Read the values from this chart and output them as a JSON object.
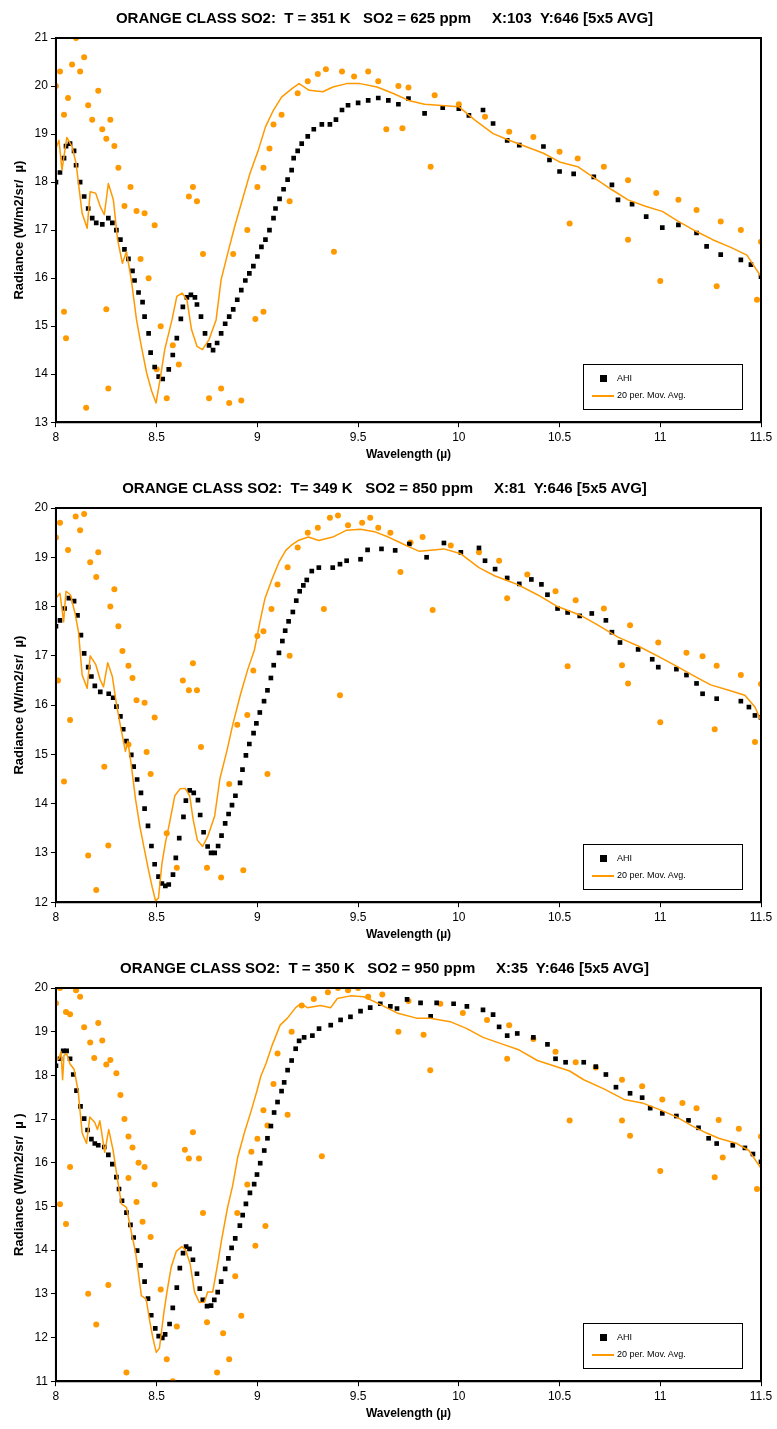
{
  "chart_data": [
    {
      "type": "scatter",
      "title": "ORANGE CLASS SO2:  T = 351 K   SO2 = 625 ppm     X:103  Y:646 [5x5 AVG]",
      "xlabel": "Wavelength (µ)",
      "ylabel": "Radiance (W/m2/sr/  µ)",
      "xlim": [
        8,
        11.5
      ],
      "xticks": [
        8,
        8.5,
        9,
        9.5,
        10,
        10.5,
        11,
        11.5
      ],
      "ylim": [
        13,
        21
      ],
      "yticks": [
        13,
        14,
        15,
        16,
        17,
        18,
        19,
        20,
        21
      ],
      "legend": "bottom right",
      "series": [
        {
          "name": "AHI",
          "type": "scatter",
          "marker": "square",
          "color": "#000000",
          "x": [
            8.0,
            8.02,
            8.04,
            8.05,
            8.07,
            8.09,
            8.1,
            8.12,
            8.14,
            8.16,
            8.18,
            8.2,
            8.23,
            8.26,
            8.28,
            8.3,
            8.32,
            8.34,
            8.36,
            8.38,
            8.39,
            8.41,
            8.43,
            8.44,
            8.46,
            8.47,
            8.49,
            8.51,
            8.53,
            8.56,
            8.58,
            8.6,
            8.62,
            8.63,
            8.65,
            8.67,
            8.69,
            8.7,
            8.72,
            8.74,
            8.76,
            8.78,
            8.8,
            8.82,
            8.84,
            8.86,
            8.88,
            8.9,
            8.92,
            8.94,
            8.96,
            8.98,
            9.0,
            9.02,
            9.04,
            9.06,
            9.08,
            9.09,
            9.11,
            9.13,
            9.15,
            9.17,
            9.18,
            9.2,
            9.22,
            9.25,
            9.28,
            9.32,
            9.36,
            9.39,
            9.42,
            9.45,
            9.5,
            9.55,
            9.6,
            9.65,
            9.7,
            9.75,
            9.83,
            9.92,
            10.0,
            10.05,
            10.12,
            10.17,
            10.24,
            10.3,
            10.42,
            10.45,
            10.5,
            10.57,
            10.67,
            10.76,
            10.79,
            10.86,
            10.93,
            11.01,
            11.09,
            11.18,
            11.23,
            11.3,
            11.4,
            11.45,
            11.5
          ],
          "values": [
            18.0,
            18.2,
            18.5,
            18.75,
            18.8,
            18.65,
            18.35,
            18.0,
            17.7,
            17.45,
            17.25,
            17.15,
            17.12,
            17.25,
            17.15,
            17.0,
            16.8,
            16.6,
            16.4,
            16.15,
            15.95,
            15.7,
            15.5,
            15.2,
            14.85,
            14.45,
            14.15,
            13.95,
            13.9,
            14.1,
            14.4,
            14.75,
            15.15,
            15.4,
            15.6,
            15.65,
            15.6,
            15.45,
            15.2,
            14.85,
            14.6,
            14.5,
            14.65,
            14.85,
            15.05,
            15.2,
            15.35,
            15.55,
            15.75,
            15.95,
            16.1,
            16.25,
            16.45,
            16.65,
            16.8,
            17.0,
            17.25,
            17.45,
            17.65,
            17.85,
            18.05,
            18.25,
            18.5,
            18.65,
            18.8,
            18.95,
            19.1,
            19.2,
            19.2,
            19.3,
            19.5,
            19.6,
            19.65,
            19.7,
            19.75,
            19.7,
            19.62,
            19.74,
            19.43,
            19.55,
            19.53,
            19.39,
            19.5,
            19.22,
            18.87,
            18.77,
            18.74,
            18.46,
            18.22,
            18.17,
            18.11,
            17.94,
            17.63,
            17.54,
            17.28,
            17.05,
            17.11,
            16.94,
            16.66,
            16.49,
            16.38,
            16.28,
            16.03
          ]
        },
        {
          "type": "scatter",
          "marker": "circle",
          "color": "#ff9900",
          "x": [
            8.0,
            8.02,
            8.04,
            8.04,
            8.05,
            8.06,
            8.08,
            8.1,
            8.12,
            8.14,
            8.15,
            8.16,
            8.18,
            8.21,
            8.23,
            8.25,
            8.25,
            8.26,
            8.27,
            8.29,
            8.31,
            8.34,
            8.37,
            8.4,
            8.42,
            8.44,
            8.46,
            8.49,
            8.5,
            8.52,
            8.55,
            8.58,
            8.61,
            8.66,
            8.68,
            8.7,
            8.73,
            8.76,
            8.82,
            8.86,
            8.88,
            8.92,
            8.95,
            8.99,
            9.0,
            9.03,
            9.03,
            9.06,
            9.08,
            9.12,
            9.16,
            9.2,
            9.25,
            9.3,
            9.34,
            9.38,
            9.42,
            9.48,
            9.55,
            9.6,
            9.64,
            9.7,
            9.72,
            9.75,
            9.86,
            9.88,
            10.0,
            10.13,
            10.25,
            10.37,
            10.5,
            10.55,
            10.59,
            10.72,
            10.84,
            10.84,
            10.98,
            11.0,
            11.09,
            11.18,
            11.28,
            11.3,
            11.4,
            11.48,
            11.5
          ],
          "values": [
            20.0,
            20.3,
            19.4,
            15.3,
            14.75,
            19.75,
            20.45,
            21.0,
            20.3,
            20.6,
            13.3,
            19.6,
            19.3,
            19.9,
            19.1,
            18.9,
            15.35,
            13.7,
            19.3,
            18.75,
            18.3,
            17.5,
            17.9,
            17.4,
            16.4,
            17.35,
            16.0,
            17.1,
            14.1,
            15.0,
            13.5,
            14.6,
            14.2,
            17.7,
            17.9,
            17.6,
            16.5,
            13.5,
            13.7,
            13.4,
            16.5,
            13.45,
            17.0,
            15.15,
            17.9,
            18.3,
            15.3,
            18.7,
            19.2,
            19.4,
            17.6,
            19.85,
            20.1,
            20.25,
            20.35,
            16.55,
            20.3,
            20.2,
            20.3,
            20.1,
            19.1,
            20.0,
            19.12,
            19.97,
            18.32,
            19.81,
            19.62,
            19.36,
            19.05,
            18.94,
            18.63,
            17.14,
            18.49,
            18.32,
            18.04,
            16.8,
            17.77,
            15.94,
            17.63,
            17.42,
            15.83,
            17.18,
            17.0,
            15.55,
            16.76
          ]
        },
        {
          "name": "20 per. Mov. Avg.",
          "type": "line",
          "marker": "none",
          "color": "#ff9900",
          "x": [
            8.0,
            8.015,
            8.03,
            8.054,
            8.08,
            8.1,
            8.13,
            8.155,
            8.17,
            8.197,
            8.22,
            8.24,
            8.26,
            8.285,
            8.306,
            8.33,
            8.35,
            8.374,
            8.4,
            8.424,
            8.45,
            8.475,
            8.497,
            8.517,
            8.54,
            8.576,
            8.6,
            8.626,
            8.65,
            8.673,
            8.7,
            8.727,
            8.76,
            8.795,
            8.82,
            8.853,
            8.887,
            8.93,
            8.963,
            9.005,
            9.04,
            9.08,
            9.12,
            9.173,
            9.207,
            9.257,
            9.325,
            9.375,
            9.443,
            9.51,
            9.594,
            9.678,
            9.75,
            9.83,
            10.0,
            10.08,
            10.17,
            10.25,
            10.42,
            10.5,
            10.59,
            10.76,
            10.84,
            10.93,
            11.01,
            11.09,
            11.18,
            11.26,
            11.35,
            11.43,
            11.5
          ],
          "values": [
            18.7,
            18.87,
            18.25,
            18.93,
            18.74,
            18.39,
            17.35,
            17.04,
            17.8,
            17.77,
            17.49,
            17.32,
            17.97,
            17.63,
            16.8,
            16.31,
            16.55,
            15.97,
            15.13,
            14.58,
            14.03,
            13.65,
            13.4,
            13.89,
            14.51,
            15.13,
            15.62,
            15.69,
            15.55,
            14.93,
            14.58,
            14.51,
            14.72,
            15.13,
            15.97,
            16.52,
            17.07,
            17.7,
            18.18,
            18.67,
            19.15,
            19.5,
            19.77,
            19.95,
            20.05,
            19.91,
            19.88,
            19.98,
            20.05,
            20.05,
            19.98,
            19.84,
            19.7,
            19.62,
            19.57,
            19.29,
            19.01,
            18.87,
            18.6,
            18.42,
            18.32,
            17.84,
            17.63,
            17.49,
            17.39,
            17.18,
            16.97,
            16.8,
            16.64,
            16.48,
            16.03
          ]
        }
      ]
    },
    {
      "type": "scatter",
      "title": "ORANGE CLASS SO2:  T= 349 K   SO2 = 850 ppm     X:81  Y:646 [5x5 AVG]",
      "xlabel": "Wavelength (µ)",
      "ylabel": "Radiance (W/m2/sr/  µ)",
      "xlim": [
        8,
        11.5
      ],
      "xticks": [
        8,
        8.5,
        9,
        9.5,
        10,
        10.5,
        11,
        11.5
      ],
      "ylim": [
        12,
        20
      ],
      "yticks": [
        12,
        13,
        14,
        15,
        16,
        17,
        18,
        19,
        20
      ],
      "legend": "bottom right",
      "series": [
        {
          "name": "AHI",
          "type": "scatter",
          "marker": "square",
          "color": "#000000",
          "x": [
            8.0,
            8.02,
            8.043,
            8.064,
            8.09,
            8.107,
            8.124,
            8.14,
            8.16,
            8.176,
            8.193,
            8.22,
            8.262,
            8.284,
            8.3,
            8.32,
            8.334,
            8.35,
            8.374,
            8.386,
            8.403,
            8.422,
            8.44,
            8.457,
            8.474,
            8.49,
            8.509,
            8.526,
            8.543,
            8.56,
            8.581,
            8.595,
            8.612,
            8.633,
            8.645,
            8.664,
            8.684,
            8.705,
            8.716,
            8.733,
            8.753,
            8.77,
            8.788,
            8.805,
            8.822,
            8.84,
            8.857,
            8.874,
            8.891,
            8.914,
            8.926,
            8.943,
            8.96,
            8.981,
            8.995,
            9.012,
            9.033,
            9.05,
            9.067,
            9.081,
            9.107,
            9.124,
            9.138,
            9.155,
            9.176,
            9.193,
            9.21,
            9.228,
            9.245,
            9.27,
            9.305,
            9.374,
            9.41,
            9.443,
            9.512,
            9.547,
            9.616,
            9.684,
            9.754,
            9.84,
            9.926,
            10.01,
            10.1,
            10.13,
            10.18,
            10.24,
            10.3,
            10.36,
            10.41,
            10.44,
            10.49,
            10.54,
            10.6,
            10.66,
            10.73,
            10.76,
            10.8,
            10.89,
            10.96,
            10.99,
            11.08,
            11.13,
            11.18,
            11.21,
            11.28,
            11.4,
            11.44,
            11.47,
            11.5
          ],
          "values": [
            17.6,
            17.72,
            17.96,
            18.17,
            18.11,
            17.82,
            17.42,
            17.05,
            16.77,
            16.58,
            16.39,
            16.27,
            16.23,
            16.15,
            15.97,
            15.77,
            15.51,
            15.27,
            14.99,
            14.75,
            14.49,
            14.22,
            13.9,
            13.55,
            13.14,
            12.77,
            12.52,
            12.38,
            12.33,
            12.36,
            12.56,
            12.9,
            13.3,
            13.73,
            14.06,
            14.27,
            14.22,
            14.07,
            13.77,
            13.42,
            13.13,
            13.0,
            13.0,
            13.14,
            13.35,
            13.6,
            13.79,
            13.97,
            14.16,
            14.42,
            14.69,
            14.98,
            15.21,
            15.43,
            15.63,
            15.85,
            16.08,
            16.3,
            16.55,
            16.81,
            17.06,
            17.3,
            17.51,
            17.7,
            17.89,
            18.12,
            18.31,
            18.43,
            18.54,
            18.72,
            18.79,
            18.79,
            18.86,
            18.93,
            18.96,
            19.15,
            19.17,
            19.14,
            19.27,
            19.0,
            19.29,
            19.1,
            19.19,
            18.93,
            18.76,
            18.58,
            18.46,
            18.55,
            18.45,
            18.24,
            17.96,
            17.88,
            17.81,
            17.86,
            17.72,
            17.48,
            17.27,
            17.13,
            16.93,
            16.77,
            16.73,
            16.61,
            16.44,
            16.23,
            16.13,
            16.08,
            15.96,
            15.79,
            15.75
          ]
        },
        {
          "type": "scatter",
          "marker": "circle",
          "color": "#ff9900",
          "x": [
            8.0,
            8.01,
            8.02,
            8.04,
            8.06,
            8.07,
            8.098,
            8.12,
            8.14,
            8.16,
            8.17,
            8.2,
            8.2,
            8.21,
            8.24,
            8.26,
            8.27,
            8.29,
            8.31,
            8.33,
            8.36,
            8.36,
            8.38,
            8.4,
            8.44,
            8.45,
            8.47,
            8.49,
            8.55,
            8.6,
            8.63,
            8.66,
            8.68,
            8.7,
            8.72,
            8.75,
            8.82,
            8.86,
            8.9,
            8.93,
            8.95,
            8.98,
            9.0,
            9.03,
            9.05,
            9.07,
            9.1,
            9.15,
            9.16,
            9.2,
            9.25,
            9.3,
            9.33,
            9.36,
            9.4,
            9.41,
            9.45,
            9.52,
            9.56,
            9.6,
            9.66,
            9.71,
            9.76,
            9.82,
            9.87,
            9.96,
            10.1,
            10.2,
            10.24,
            10.34,
            10.48,
            10.54,
            10.58,
            10.72,
            10.81,
            10.84,
            10.85,
            10.99,
            11.0,
            11.13,
            11.21,
            11.27,
            11.28,
            11.4,
            11.47,
            11.5
          ],
          "values": [
            19.4,
            16.5,
            19.7,
            14.45,
            19.15,
            15.7,
            19.83,
            19.55,
            19.88,
            12.95,
            18.9,
            18.6,
            12.25,
            19.1,
            14.75,
            13.15,
            18.0,
            18.35,
            17.6,
            17.1,
            16.8,
            15.2,
            16.55,
            16.1,
            16.05,
            15.05,
            14.6,
            15.75,
            13.4,
            12.7,
            16.5,
            16.3,
            16.85,
            16.3,
            15.15,
            12.7,
            12.5,
            14.4,
            15.6,
            12.65,
            15.8,
            16.7,
            17.4,
            17.5,
            14.6,
            17.95,
            18.45,
            18.8,
            17.0,
            19.2,
            19.5,
            19.6,
            17.95,
            19.8,
            19.85,
            16.2,
            19.65,
            19.7,
            19.8,
            19.6,
            19.5,
            18.7,
            19.3,
            19.41,
            17.93,
            19.24,
            19.1,
            18.93,
            18.17,
            18.65,
            18.31,
            16.79,
            18.13,
            17.96,
            16.81,
            16.44,
            17.62,
            17.27,
            15.65,
            17.06,
            16.99,
            15.51,
            16.8,
            16.61,
            15.25,
            16.43
          ]
        },
        {
          "name": "20 per. Mov. Avg.",
          "type": "line",
          "marker": "none",
          "color": "#ff9900",
          "x": [
            8.0,
            8.02,
            8.038,
            8.05,
            8.072,
            8.095,
            8.112,
            8.13,
            8.155,
            8.17,
            8.198,
            8.22,
            8.236,
            8.257,
            8.28,
            8.3,
            8.322,
            8.345,
            8.357,
            8.374,
            8.395,
            8.417,
            8.44,
            8.46,
            8.478,
            8.495,
            8.509,
            8.526,
            8.543,
            8.564,
            8.59,
            8.616,
            8.641,
            8.664,
            8.681,
            8.702,
            8.728,
            8.753,
            8.788,
            8.814,
            8.848,
            8.878,
            8.917,
            8.952,
            8.986,
            9.012,
            9.038,
            9.072,
            9.107,
            9.141,
            9.167,
            9.202,
            9.253,
            9.305,
            9.374,
            9.443,
            9.512,
            9.581,
            9.65,
            9.702,
            9.753,
            9.805,
            9.926,
            10.01,
            10.1,
            10.18,
            10.29,
            10.39,
            10.49,
            10.6,
            10.68,
            10.79,
            10.89,
            10.99,
            11.08,
            11.16,
            11.25,
            11.34,
            11.42,
            11.47,
            11.5
          ],
          "values": [
            18.17,
            18.27,
            17.69,
            18.31,
            18.24,
            17.86,
            17.48,
            16.61,
            16.34,
            17.0,
            16.82,
            16.51,
            16.37,
            16.86,
            16.58,
            16.03,
            15.54,
            15.06,
            15.27,
            14.78,
            14.09,
            13.53,
            13.05,
            12.64,
            12.3,
            12.02,
            12.09,
            12.78,
            13.2,
            13.61,
            14.16,
            14.3,
            14.31,
            14.16,
            13.68,
            13.26,
            13.13,
            13.33,
            13.75,
            14.51,
            15.06,
            15.61,
            16.23,
            16.72,
            17.13,
            17.68,
            18.17,
            18.55,
            18.9,
            19.14,
            19.24,
            19.34,
            19.41,
            19.34,
            19.41,
            19.55,
            19.57,
            19.52,
            19.41,
            19.31,
            19.21,
            19.12,
            19.17,
            19.07,
            18.79,
            18.62,
            18.45,
            18.24,
            18.0,
            17.83,
            17.65,
            17.38,
            17.2,
            16.99,
            16.79,
            16.61,
            16.41,
            16.3,
            16.2,
            15.96,
            15.68
          ]
        }
      ]
    },
    {
      "type": "scatter",
      "title": "ORANGE CLASS SO2:  T = 350 K   SO2 = 950 ppm     X:35  Y:646 [5x5 AVG]",
      "xlabel": "Wavelength (µ)",
      "ylabel": "Radiance (W/m2/sr/  µ )",
      "xlim": [
        8,
        11.5
      ],
      "xticks": [
        8,
        8.5,
        9,
        9.5,
        10,
        10.5,
        11,
        11.5
      ],
      "ylim": [
        11,
        20
      ],
      "yticks": [
        11,
        12,
        13,
        14,
        15,
        16,
        17,
        18,
        19,
        20
      ],
      "legend": "bottom right",
      "series": [
        {
          "name": "AHI",
          "type": "scatter",
          "marker": "square",
          "color": "#000000",
          "x": [
            8.0,
            8.02,
            8.036,
            8.053,
            8.07,
            8.086,
            8.102,
            8.122,
            8.14,
            8.157,
            8.176,
            8.193,
            8.21,
            8.24,
            8.26,
            8.28,
            8.3,
            8.313,
            8.328,
            8.35,
            8.37,
            8.386,
            8.403,
            8.42,
            8.44,
            8.457,
            8.473,
            8.493,
            8.51,
            8.528,
            8.542,
            8.564,
            8.58,
            8.6,
            8.615,
            8.631,
            8.646,
            8.663,
            8.68,
            8.7,
            8.714,
            8.729,
            8.75,
            8.77,
            8.786,
            8.803,
            8.82,
            8.84,
            8.856,
            8.872,
            8.89,
            8.913,
            8.927,
            8.943,
            8.963,
            8.984,
            8.998,
            9.014,
            9.034,
            9.05,
            9.067,
            9.083,
            9.1,
            9.12,
            9.133,
            9.15,
            9.17,
            9.19,
            9.207,
            9.232,
            9.273,
            9.306,
            9.364,
            9.413,
            9.462,
            9.512,
            9.56,
            9.61,
            9.66,
            9.693,
            9.743,
            9.81,
            9.86,
            9.89,
            9.974,
            10.04,
            10.12,
            10.17,
            10.2,
            10.24,
            10.29,
            10.37,
            10.44,
            10.48,
            10.53,
            10.62,
            10.68,
            10.73,
            10.78,
            10.85,
            10.91,
            10.95,
            11.01,
            11.08,
            11.14,
            11.19,
            11.24,
            11.28,
            11.36,
            11.42,
            11.46,
            11.5
          ],
          "values": [
            18.22,
            18.38,
            18.56,
            18.56,
            18.38,
            18.02,
            17.65,
            17.29,
            17.01,
            16.75,
            16.54,
            16.44,
            16.4,
            16.36,
            16.18,
            15.97,
            15.67,
            15.4,
            15.13,
            14.86,
            14.58,
            14.29,
            13.99,
            13.65,
            13.28,
            12.89,
            12.51,
            12.21,
            12.03,
            11.99,
            12.07,
            12.31,
            12.68,
            13.14,
            13.59,
            13.93,
            14.08,
            14.03,
            13.78,
            13.46,
            13.12,
            12.86,
            12.72,
            12.73,
            12.86,
            13.04,
            13.28,
            13.57,
            13.81,
            14.05,
            14.27,
            14.56,
            14.8,
            15.06,
            15.31,
            15.51,
            15.73,
            15.99,
            16.28,
            16.56,
            16.84,
            17.15,
            17.39,
            17.64,
            17.84,
            18.12,
            18.34,
            18.61,
            18.79,
            18.87,
            18.91,
            19.07,
            19.15,
            19.27,
            19.34,
            19.47,
            19.55,
            19.64,
            19.58,
            19.53,
            19.74,
            19.66,
            19.35,
            19.66,
            19.64,
            19.58,
            19.5,
            19.39,
            19.11,
            18.91,
            18.96,
            18.87,
            18.71,
            18.38,
            18.3,
            18.3,
            18.2,
            18.02,
            17.73,
            17.59,
            17.49,
            17.25,
            17.13,
            17.07,
            16.97,
            16.8,
            16.56,
            16.44,
            16.4,
            16.34,
            16.2,
            16.02
          ]
        },
        {
          "type": "scatter",
          "marker": "circle",
          "color": "#ff9900",
          "x": [
            8.0,
            8.02,
            8.02,
            8.05,
            8.05,
            8.07,
            8.07,
            8.1,
            8.12,
            8.14,
            8.16,
            8.17,
            8.19,
            8.2,
            8.21,
            8.23,
            8.25,
            8.26,
            8.27,
            8.3,
            8.32,
            8.34,
            8.35,
            8.36,
            8.36,
            8.38,
            8.4,
            8.41,
            8.43,
            8.44,
            8.47,
            8.49,
            8.52,
            8.55,
            8.58,
            8.6,
            8.64,
            8.66,
            8.68,
            8.71,
            8.73,
            8.75,
            8.8,
            8.83,
            8.86,
            8.89,
            8.9,
            8.92,
            8.95,
            8.97,
            8.99,
            9.0,
            9.03,
            9.04,
            9.05,
            9.08,
            9.1,
            9.15,
            9.17,
            9.22,
            9.28,
            9.32,
            9.35,
            9.4,
            9.45,
            9.5,
            9.55,
            9.62,
            9.7,
            9.75,
            9.825,
            9.858,
            9.908,
            10.02,
            10.14,
            10.24,
            10.25,
            10.37,
            10.48,
            10.55,
            10.58,
            10.68,
            10.81,
            10.81,
            10.85,
            10.91,
            11.0,
            11.01,
            11.11,
            11.18,
            11.27,
            11.29,
            11.31,
            11.39,
            11.48,
            11.5
          ],
          "values": [
            19.65,
            20.0,
            15.05,
            19.45,
            14.6,
            19.4,
            15.9,
            19.95,
            19.8,
            19.1,
            13.0,
            18.75,
            18.4,
            12.3,
            19.2,
            18.8,
            18.25,
            13.2,
            18.35,
            18.05,
            17.55,
            17.0,
            11.2,
            16.6,
            15.65,
            16.35,
            15.1,
            16.0,
            14.65,
            15.9,
            14.3,
            15.5,
            13.1,
            11.5,
            11.0,
            12.25,
            16.3,
            16.1,
            16.7,
            16.1,
            14.85,
            12.35,
            11.2,
            12.1,
            11.5,
            13.4,
            14.85,
            12.5,
            15.5,
            16.25,
            14.1,
            16.55,
            17.2,
            14.55,
            16.85,
            17.8,
            18.5,
            17.1,
            19.0,
            19.6,
            19.75,
            16.15,
            19.9,
            20.0,
            19.95,
            20.0,
            19.8,
            19.85,
            19.0,
            19.7,
            18.93,
            18.12,
            19.64,
            19.43,
            19.27,
            18.38,
            19.15,
            18.83,
            18.54,
            16.97,
            18.3,
            18.18,
            17.9,
            16.97,
            16.62,
            17.75,
            15.81,
            17.45,
            17.37,
            17.25,
            15.67,
            16.98,
            16.12,
            16.78,
            15.4,
            16.6
          ]
        },
        {
          "name": "20 per. Mov. Avg.",
          "type": "line",
          "marker": "none",
          "color": "#ff9900",
          "x": [
            8.0,
            8.015,
            8.025,
            8.033,
            8.04,
            8.053,
            8.07,
            8.09,
            8.11,
            8.13,
            8.152,
            8.168,
            8.193,
            8.206,
            8.218,
            8.242,
            8.262,
            8.284,
            8.305,
            8.325,
            8.35,
            8.374,
            8.396,
            8.424,
            8.448,
            8.465,
            8.481,
            8.498,
            8.514,
            8.534,
            8.551,
            8.572,
            8.597,
            8.625,
            8.643,
            8.666,
            8.688,
            8.712,
            8.737,
            8.753,
            8.778,
            8.803,
            8.823,
            8.852,
            8.877,
            8.902,
            8.935,
            8.968,
            8.998,
            9.017,
            9.042,
            9.075,
            9.113,
            9.149,
            9.19,
            9.215,
            9.248,
            9.314,
            9.364,
            9.397,
            9.462,
            9.528,
            9.594,
            9.693,
            9.79,
            9.858,
            9.957,
            10.04,
            10.12,
            10.22,
            10.3,
            10.39,
            10.47,
            10.55,
            10.62,
            10.72,
            10.82,
            10.91,
            11.0,
            11.08,
            11.16,
            11.23,
            11.29,
            11.38,
            11.44,
            11.5
          ],
          "values": [
            18.34,
            18.38,
            18.54,
            17.9,
            18.46,
            18.5,
            18.26,
            18.14,
            17.65,
            16.68,
            16.44,
            17.05,
            16.92,
            16.76,
            16.96,
            16.24,
            16.76,
            16.28,
            15.63,
            15.06,
            14.98,
            14.42,
            13.93,
            12.96,
            12.88,
            12.39,
            11.99,
            11.66,
            11.76,
            12.51,
            13.04,
            13.61,
            13.97,
            14.08,
            14.01,
            13.69,
            13.04,
            12.8,
            12.81,
            13.04,
            13.04,
            13.69,
            14.25,
            14.98,
            15.47,
            16.12,
            16.68,
            17.17,
            17.65,
            17.98,
            18.26,
            18.71,
            19.15,
            19.31,
            19.55,
            19.64,
            19.55,
            19.6,
            19.55,
            19.76,
            19.82,
            19.8,
            19.66,
            19.43,
            19.31,
            19.31,
            19.23,
            19.07,
            18.87,
            18.71,
            18.58,
            18.34,
            18.22,
            18.1,
            17.9,
            17.69,
            17.45,
            17.37,
            17.21,
            17.05,
            16.84,
            16.68,
            16.56,
            16.44,
            16.28,
            15.87
          ]
        }
      ]
    }
  ]
}
